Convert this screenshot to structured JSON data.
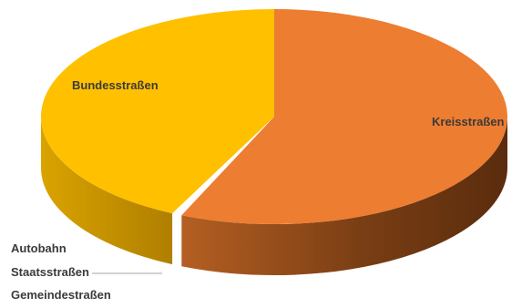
{
  "chart_data": {
    "type": "pie",
    "title": "",
    "style": "3d",
    "slices": [
      {
        "label": "Kreisstraßen",
        "value": 56.5,
        "color": "#ED7D31"
      },
      {
        "label": "Bundesstraßen",
        "value": 42.8,
        "color": "#FFC000"
      },
      {
        "label": "Gemeindestraßen",
        "value": 0.3,
        "color": "#7F7F7F"
      },
      {
        "label": "Staatsstraßen",
        "value": 0.2,
        "color": "#A5A5A5"
      },
      {
        "label": "Autobahn",
        "value": 0.2,
        "color": "#5B9BD5"
      }
    ]
  }
}
